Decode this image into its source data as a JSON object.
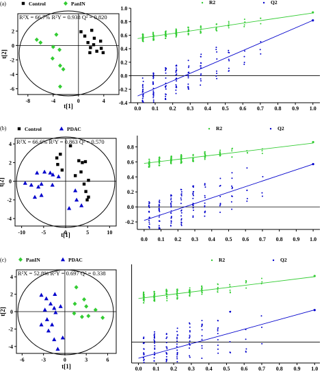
{
  "panel_labels": [
    "(a)",
    "(b)",
    "(c)"
  ],
  "chart_data": [
    {
      "type": "scatter",
      "panel": "(a)",
      "xlabel": "t[1]",
      "ylabel": "t[2]",
      "xticks": [
        -8,
        -4,
        0,
        4
      ],
      "yticks": [
        2,
        0,
        -2,
        -4,
        -6
      ],
      "xlim": [
        -9.6,
        6.4
      ],
      "ylim": [
        -6.8,
        4.4
      ],
      "stats_text": "R²X = 66.7% R²Y = 0.938 Q² = 0.820",
      "series": [
        {
          "name": "Control",
          "marker": "square",
          "color": "#000000",
          "points": [
            [
              0.4,
              1.9
            ],
            [
              2.1,
              2.1
            ],
            [
              1.0,
              1.3
            ],
            [
              2.5,
              1.0
            ],
            [
              1.5,
              0.4
            ],
            [
              2.4,
              0.1
            ],
            [
              3.5,
              0.6
            ],
            [
              1.9,
              -0.3
            ],
            [
              2.9,
              -0.8
            ],
            [
              1.8,
              -1.0
            ],
            [
              3.6,
              -0.4
            ],
            [
              3.9,
              -1.0
            ]
          ]
        },
        {
          "name": "PanIN",
          "marker": "diamond",
          "color": "#33cc33",
          "points": [
            [
              -6.6,
              0.8
            ],
            [
              -6.0,
              0.4
            ],
            [
              -3.5,
              1.5
            ],
            [
              -4.0,
              -0.2
            ],
            [
              -3.0,
              -0.6
            ],
            [
              -4.1,
              -1.8
            ],
            [
              -2.9,
              -2.8
            ],
            [
              -2.4,
              -3.3
            ],
            [
              -2.9,
              -5.7
            ]
          ]
        }
      ]
    },
    {
      "type": "scatter",
      "panel": "(a)",
      "xticks": [
        0.0,
        0.1,
        0.2,
        0.3,
        0.4,
        0.5,
        0.6,
        0.7,
        0.8,
        0.9,
        1.0
      ],
      "yticks": [
        1.0,
        0.8,
        0.6,
        0.4,
        0.2,
        0.0,
        -0.2,
        -0.4
      ],
      "xlim": [
        -0.06,
        1.04
      ],
      "ylim": [
        -0.4,
        1.0
      ],
      "series": [
        {
          "name": "R2",
          "marker": "dot",
          "color": "#33cc33",
          "line_from": [
            0.0,
            0.55
          ],
          "line_to": [
            1.0,
            0.93
          ],
          "end_point": [
            1.0,
            0.938
          ]
        },
        {
          "name": "Q2",
          "marker": "dot",
          "color": "#0000cc",
          "line_from": [
            0.0,
            -0.3
          ],
          "line_to": [
            1.0,
            0.82
          ],
          "end_point": [
            1.0,
            0.82
          ]
        }
      ]
    },
    {
      "type": "scatter",
      "panel": "(b)",
      "xlabel": "t[1]",
      "ylabel": "t[2]",
      "xticks": [
        -10,
        -5,
        0,
        5,
        10
      ],
      "yticks": [
        4,
        2,
        0,
        -2,
        -4
      ],
      "xlim": [
        -11.5,
        11.5
      ],
      "ylim": [
        -4.8,
        4.6
      ],
      "stats_text": "R²X = 66.6% R²Y = 0.863 Q² = 0.570",
      "series": [
        {
          "name": "Control",
          "marker": "square",
          "color": "#000000",
          "points": [
            [
              1.1,
              3.8
            ],
            [
              -1.2,
              2.9
            ],
            [
              -2.0,
              2.5
            ],
            [
              -1.8,
              1.8
            ],
            [
              3.0,
              2.2
            ],
            [
              3.8,
              2.0
            ],
            [
              4.5,
              2.1
            ],
            [
              -0.8,
              1.2
            ],
            [
              3.5,
              1.0
            ],
            [
              2.2,
              0.6
            ],
            [
              5.2,
              0.1
            ],
            [
              4.2,
              -0.3
            ],
            [
              4.6,
              -1.1
            ],
            [
              5.2,
              -1.7
            ],
            [
              4.9,
              -2.0
            ]
          ]
        },
        {
          "name": "PDAC",
          "marker": "triangle",
          "color": "#0000cc",
          "points": [
            [
              -6.5,
              0.9
            ],
            [
              -4.8,
              1.0
            ],
            [
              -3.5,
              0.9
            ],
            [
              -2.9,
              0.7
            ],
            [
              -1.6,
              0.5
            ],
            [
              -9.2,
              -0.2
            ],
            [
              -7.8,
              -0.4
            ],
            [
              -6.2,
              -0.6
            ],
            [
              -5.5,
              -0.3
            ],
            [
              -3.0,
              -0.4
            ],
            [
              -5.5,
              -1.5
            ],
            [
              -7.0,
              -1.7
            ],
            [
              2.2,
              -1.0
            ],
            [
              2.5,
              -2.0
            ],
            [
              3.6,
              -2.6
            ],
            [
              0.8,
              -2.9
            ]
          ]
        }
      ]
    },
    {
      "type": "scatter",
      "panel": "(b)",
      "xticks": [
        0.0,
        0.1,
        0.2,
        0.3,
        0.4,
        0.5,
        0.6,
        0.7,
        0.8,
        0.9,
        1.0
      ],
      "yticks": [
        0.8,
        0.6,
        0.4,
        0.2,
        0.0,
        -0.2
      ],
      "xlim": [
        -0.06,
        1.04
      ],
      "ylim": [
        -0.3,
        0.95
      ],
      "series": [
        {
          "name": "R2",
          "marker": "dot",
          "color": "#33cc33",
          "line_from": [
            0.0,
            0.58
          ],
          "line_to": [
            1.0,
            0.85
          ],
          "end_point": [
            1.0,
            0.863
          ]
        },
        {
          "name": "Q2",
          "marker": "dot",
          "color": "#0000cc",
          "line_from": [
            0.0,
            -0.18
          ],
          "line_to": [
            1.0,
            0.57
          ],
          "end_point": [
            1.0,
            0.57
          ]
        }
      ]
    },
    {
      "type": "scatter",
      "panel": "(c)",
      "xlabel": "t[1]",
      "ylabel": "t[2]",
      "xticks": [
        -6,
        -3,
        0,
        3,
        6
      ],
      "yticks": [
        4,
        2,
        0,
        -2,
        -4
      ],
      "xlim": [
        -6.8,
        7.2
      ],
      "ylim": [
        -4.8,
        4.8
      ],
      "stats_text": "R²X = 52.8% R²Y = 0.697 Q² = 0.338",
      "series": [
        {
          "name": "PanIN",
          "marker": "diamond",
          "color": "#33cc33",
          "points": [
            [
              1.6,
              2.8
            ],
            [
              2.7,
              1.4
            ],
            [
              1.4,
              0.9
            ],
            [
              3.0,
              0.6
            ],
            [
              1.3,
              -0.2
            ],
            [
              4.3,
              0.2
            ],
            [
              3.3,
              -0.5
            ],
            [
              5.3,
              -0.7
            ],
            [
              2.4,
              -0.6
            ]
          ]
        },
        {
          "name": "PDAC",
          "marker": "triangle",
          "color": "#0000cc",
          "points": [
            [
              -3.3,
              1.9
            ],
            [
              -2.6,
              1.5
            ],
            [
              -1.4,
              2.0
            ],
            [
              -2.0,
              0.9
            ],
            [
              -2.8,
              0.2
            ],
            [
              -1.3,
              -0.1
            ],
            [
              -1.5,
              0.4
            ],
            [
              -0.6,
              0.6
            ],
            [
              -2.5,
              -0.9
            ],
            [
              -3.3,
              -1.5
            ],
            [
              -2.3,
              -2.2
            ],
            [
              -1.8,
              -1.5
            ],
            [
              -1.5,
              -3.2
            ],
            [
              -0.3,
              -3.0
            ],
            [
              -1.0,
              -4.3
            ]
          ]
        }
      ]
    },
    {
      "type": "scatter",
      "panel": "(c)",
      "xticks": [
        0.0,
        0.1,
        0.2,
        0.3,
        0.4,
        0.5,
        0.6,
        0.7,
        0.8,
        0.9,
        1.0
      ],
      "yticks": [],
      "xlim": [
        -0.01,
        1.03
      ],
      "ylim": [
        -0.22,
        0.82
      ],
      "series": [
        {
          "name": "R2",
          "marker": "dot",
          "color": "#33cc33",
          "line_from": [
            0.0,
            0.46
          ],
          "line_to": [
            1.0,
            0.69
          ],
          "end_point": [
            1.0,
            0.697
          ]
        },
        {
          "name": "Q2",
          "marker": "dot",
          "color": "#0000cc",
          "line_from": [
            0.0,
            -0.17
          ],
          "line_to": [
            1.0,
            0.34
          ],
          "end_point": [
            1.0,
            0.338
          ]
        }
      ]
    }
  ]
}
